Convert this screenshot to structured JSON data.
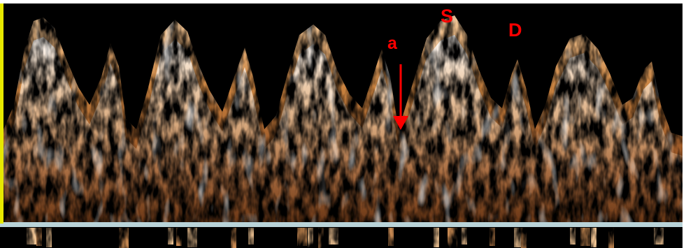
{
  "labels": {
    "systolic": "S",
    "diastolic": "D",
    "atrial": "a"
  },
  "colors": {
    "background": "#000000",
    "signal_dark": "#5a2e12",
    "signal_mid": "#b86f38",
    "signal_light": "#f3c99a",
    "signal_peak": "#ffffff",
    "baseline": "#b9d3d8",
    "frame_left": "#e7e800",
    "annotation": "#ff0000"
  }
}
